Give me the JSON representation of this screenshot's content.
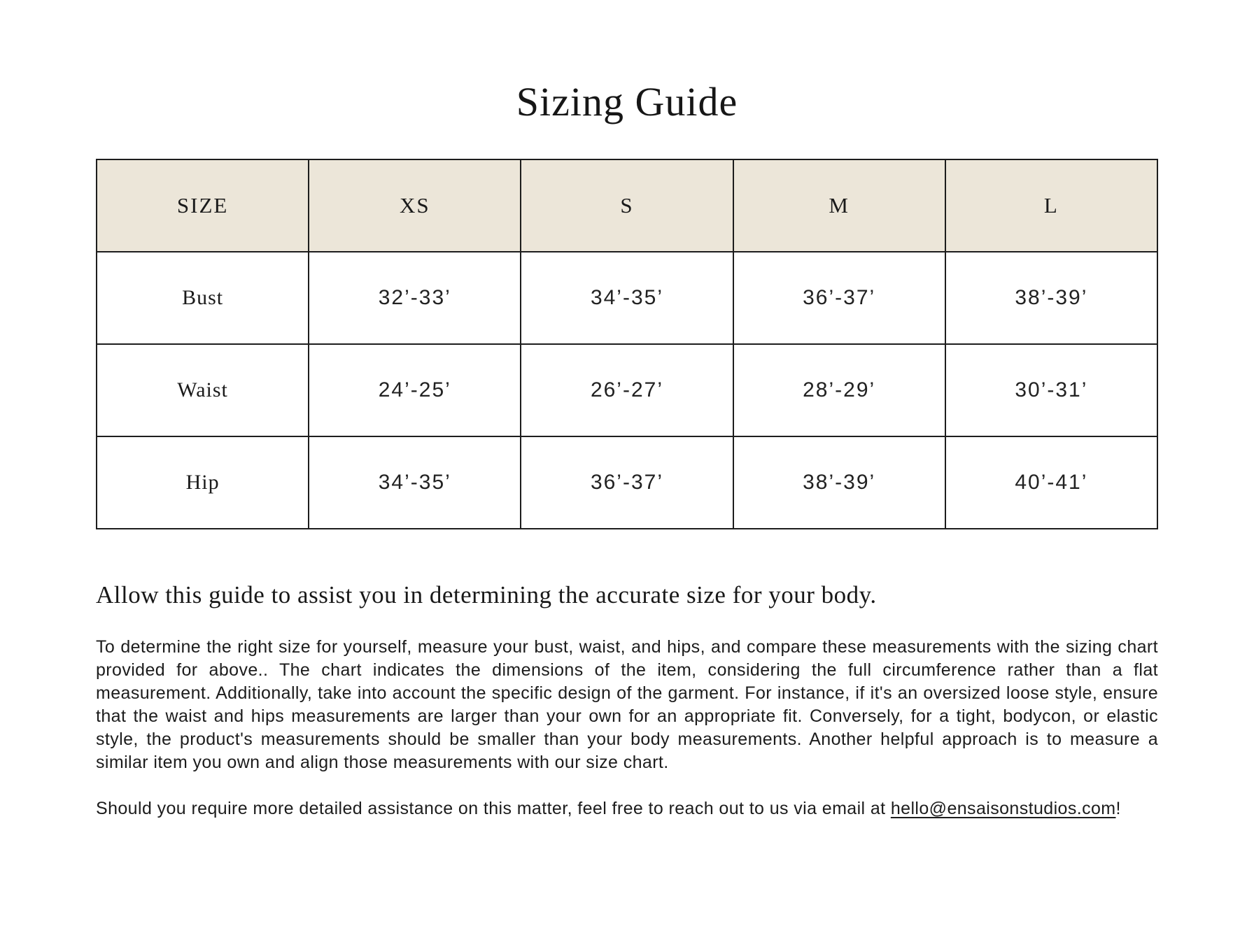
{
  "page": {
    "title": "Sizing Guide"
  },
  "table": {
    "header_bg": "#ece6d9",
    "border_color": "#1d1d1d",
    "columns": [
      "SIZE",
      "XS",
      "S",
      "M",
      "L"
    ],
    "rows": [
      {
        "label": "Bust",
        "values": [
          "32’-33’",
          "34’-35’",
          "36’-37’",
          "38’-39’"
        ]
      },
      {
        "label": "Waist",
        "values": [
          "24’-25’",
          "26’-27’",
          "28’-29’",
          "30’-31’"
        ]
      },
      {
        "label": "Hip",
        "values": [
          "34’-35’",
          "36’-37’",
          "38’-39’",
          "40’-41’"
        ]
      }
    ]
  },
  "content": {
    "subheading": "Allow this guide to assist you in determining the accurate size for your body.",
    "paragraph": "To determine the right size for yourself, measure your bust, waist, and hips, and compare these measurements with the sizing chart provided for above.. The chart indicates the dimensions of the item, considering the full circumference rather than a flat measurement. Additionally, take into account the specific design of the garment. For instance, if it's an oversized loose style, ensure that the waist and hips measurements are larger than your own for an appropriate fit. Conversely, for a tight, bodycon, or elastic style, the product's measurements should be smaller than your body measurements. Another helpful approach is to measure a similar item you own and align those measurements with our size chart.",
    "contact_prefix": "Should you require more detailed assistance on this matter, feel free to reach out to us via email at ",
    "email": "hello@ensaisonstudios.com",
    "contact_suffix": "!"
  }
}
